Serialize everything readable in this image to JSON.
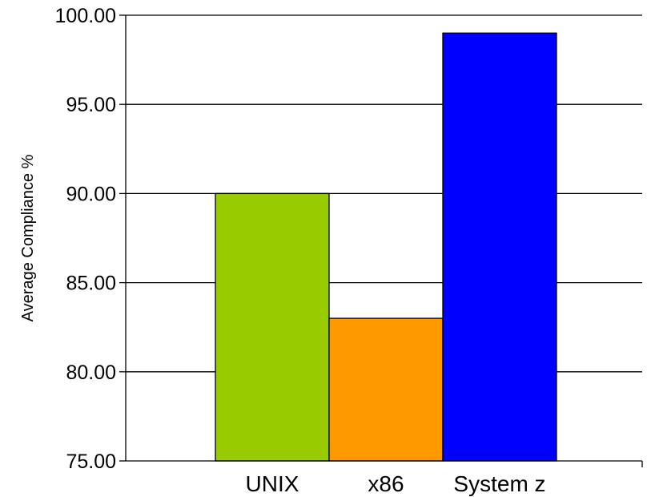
{
  "chart_data": {
    "type": "bar",
    "title": "",
    "xlabel": "",
    "ylabel": "Average Compliance %",
    "categories": [
      "UNIX",
      "x86",
      "System z"
    ],
    "values": [
      90.0,
      83.0,
      99.0
    ],
    "colors": [
      "#99cc00",
      "#ff9900",
      "#0000ff"
    ],
    "ylim": [
      75,
      100
    ],
    "yticks": [
      "75.00",
      "80.00",
      "85.00",
      "90.00",
      "95.00",
      "100.00"
    ],
    "grid": true,
    "legend": "none"
  }
}
